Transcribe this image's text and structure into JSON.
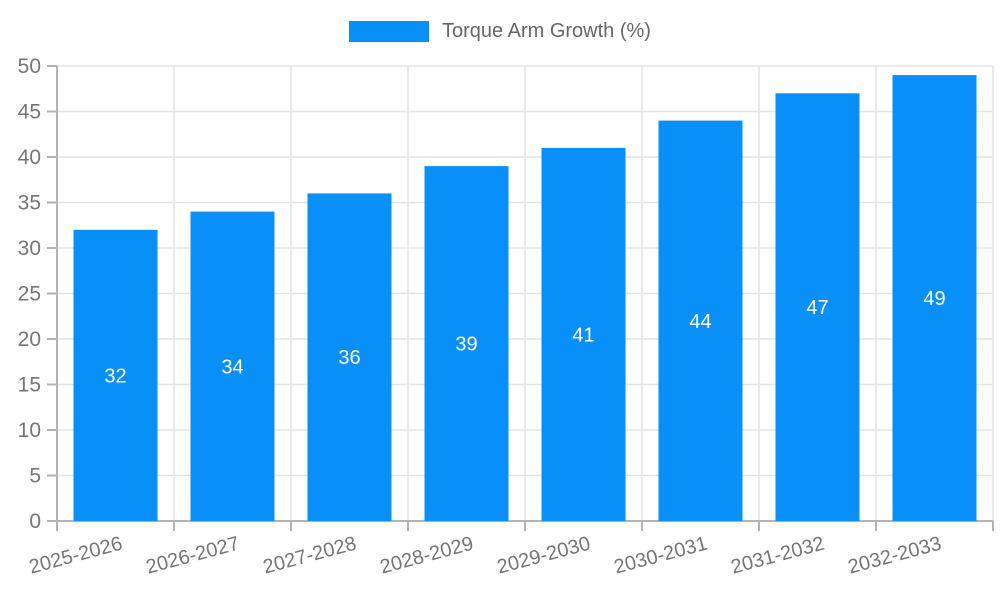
{
  "chart_data": {
    "type": "bar",
    "title": "Torque Arm Growth (%)",
    "categories": [
      "2025-2026",
      "2026-2027",
      "2027-2028",
      "2028-2029",
      "2029-2030",
      "2030-2031",
      "2031-2032",
      "2032-2033"
    ],
    "values": [
      32,
      34,
      36,
      39,
      41,
      44,
      47,
      49
    ],
    "xlabel": "",
    "ylabel": "",
    "ylim": [
      0,
      50
    ],
    "ytick_step": 5,
    "ytick_labels": [
      "0",
      "5",
      "10",
      "15",
      "20",
      "25",
      "30",
      "35",
      "40",
      "45",
      "50"
    ],
    "grid": true,
    "legend_position": "top-center",
    "x_label_rotation_deg": -15,
    "colors": {
      "bar": "#0990f8",
      "value_label": "#ffffff",
      "axis_text": "#757575",
      "legend_text": "#666666",
      "gridline": "#e3e3e3",
      "axis_line": "#b3b3b3",
      "background": "#ffffff"
    }
  },
  "legend": {
    "label": "Torque Arm Growth (%)"
  }
}
